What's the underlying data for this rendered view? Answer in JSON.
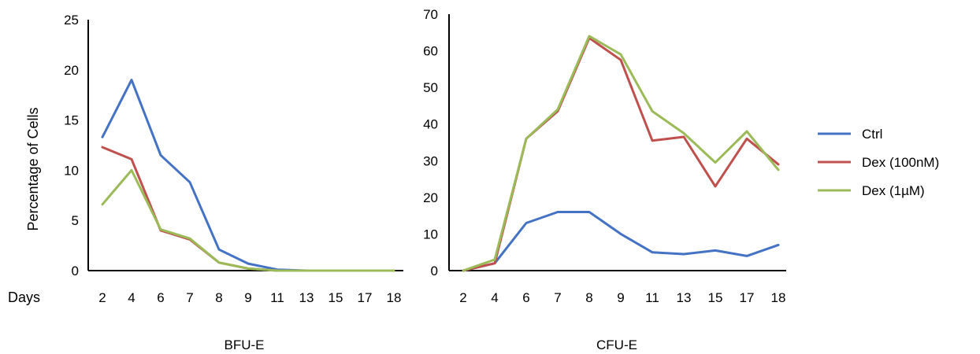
{
  "figure": {
    "ylabel": "Percentage of Cells",
    "xlabel": "Days"
  },
  "legend": {
    "placement": "right",
    "entries": [
      {
        "label": "Ctrl",
        "color": "#4472c4"
      },
      {
        "label": "Dex (100nM)",
        "color": "#c0504d"
      },
      {
        "label": "Dex (1µM)",
        "color": "#9bbb59"
      }
    ]
  },
  "chart_data": [
    {
      "type": "line",
      "title": "BFU-E",
      "xlabel": "Days",
      "ylabel": "Percentage of Cells",
      "categories": [
        "2",
        "4",
        "6",
        "7",
        "8",
        "9",
        "11",
        "13",
        "15",
        "17",
        "18"
      ],
      "ylim": [
        0,
        25
      ],
      "yticks": [
        0,
        5,
        10,
        15,
        20,
        25
      ],
      "grid": false,
      "series": [
        {
          "name": "Ctrl",
          "color": "#4472c4",
          "values": [
            13.3,
            19.0,
            11.5,
            8.8,
            2.1,
            0.7,
            0.1,
            0.0,
            0.0,
            0.0,
            0.0
          ]
        },
        {
          "name": "Dex (100nM)",
          "color": "#c0504d",
          "values": [
            12.3,
            11.1,
            4.0,
            3.1,
            0.8,
            0.2,
            0.0,
            0.0,
            0.0,
            0.0,
            0.0
          ]
        },
        {
          "name": "Dex (1µM)",
          "color": "#9bbb59",
          "values": [
            6.6,
            10.0,
            4.1,
            3.2,
            0.8,
            0.2,
            0.0,
            0.0,
            0.0,
            0.0,
            0.0
          ]
        }
      ]
    },
    {
      "type": "line",
      "title": "CFU-E",
      "xlabel": "Days",
      "ylabel": "",
      "categories": [
        "2",
        "4",
        "6",
        "7",
        "8",
        "9",
        "11",
        "13",
        "15",
        "17",
        "18"
      ],
      "ylim": [
        0,
        70
      ],
      "yticks": [
        0,
        10,
        20,
        30,
        40,
        50,
        60,
        70
      ],
      "grid": false,
      "series": [
        {
          "name": "Ctrl",
          "color": "#4472c4",
          "values": [
            0.0,
            2.0,
            13.0,
            16.0,
            16.0,
            10.0,
            5.0,
            4.5,
            5.5,
            4.0,
            7.0
          ]
        },
        {
          "name": "Dex (100nM)",
          "color": "#c0504d",
          "values": [
            0.0,
            2.0,
            36.0,
            43.5,
            63.5,
            57.5,
            35.5,
            36.5,
            23.0,
            36.0,
            29.0
          ]
        },
        {
          "name": "Dex (1µM)",
          "color": "#9bbb59",
          "values": [
            0.0,
            3.0,
            36.0,
            44.0,
            64.0,
            59.0,
            43.5,
            37.5,
            29.5,
            38.0,
            27.5
          ]
        }
      ]
    }
  ]
}
